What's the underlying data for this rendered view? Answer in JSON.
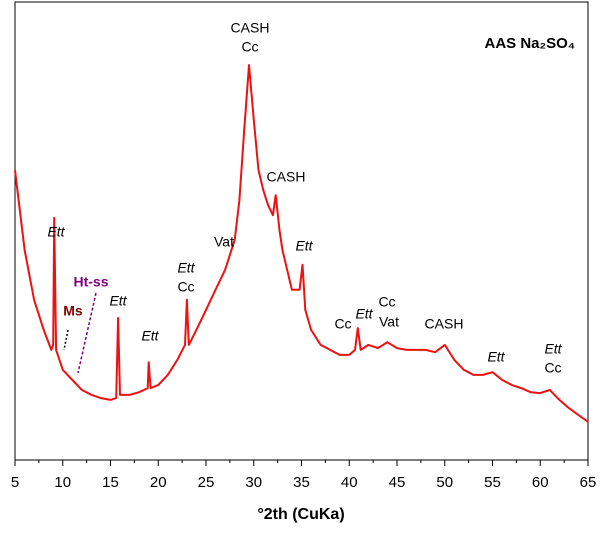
{
  "chart_data": {
    "type": "line",
    "title": "AAS Na₂SO₄",
    "x_label": "°2th (CuKa)",
    "x": [
      5,
      6,
      7,
      8,
      8.8,
      9.0,
      9.1,
      9.3,
      10,
      11,
      12,
      13,
      14,
      15,
      15.6,
      15.8,
      16.0,
      17,
      18,
      18.9,
      19.0,
      19.2,
      20,
      21,
      22,
      22.8,
      23.0,
      23.2,
      24,
      25,
      26,
      27,
      28,
      28.5,
      29,
      29.5,
      30,
      30.5,
      31,
      31.5,
      32,
      32.3,
      32.7,
      33,
      34,
      34.8,
      35.1,
      35.4,
      36,
      37,
      38,
      39,
      40,
      40.6,
      40.9,
      41.2,
      42,
      43,
      44,
      45,
      46,
      47,
      48,
      49,
      50,
      51,
      52,
      53,
      54,
      55,
      56,
      57,
      58,
      59,
      60,
      61,
      62,
      63,
      64,
      65
    ],
    "series": [
      {
        "name": "AAS Na₂SO₄",
        "color": "#ee1111",
        "values": [
          63.7,
          46.2,
          35.2,
          28.6,
          24.2,
          25.3,
          53.2,
          24.2,
          19.8,
          17.6,
          15.4,
          14.3,
          13.6,
          13.2,
          13.6,
          31.2,
          14.3,
          14.3,
          14.9,
          15.8,
          21.5,
          15.8,
          16.5,
          18.7,
          22.0,
          25.3,
          35.2,
          25.3,
          28.6,
          33.0,
          37.4,
          41.8,
          48.4,
          57.1,
          72.5,
          86.8,
          74.7,
          63.7,
          59.3,
          56.0,
          53.8,
          58.2,
          50.5,
          46.2,
          37.4,
          37.4,
          42.9,
          33.0,
          28.6,
          25.3,
          24.2,
          23.1,
          23.1,
          24.2,
          29.0,
          24.2,
          25.3,
          24.6,
          25.9,
          24.6,
          24.2,
          24.2,
          24.2,
          23.7,
          25.3,
          22.0,
          19.8,
          18.7,
          18.7,
          19.3,
          17.6,
          16.5,
          15.8,
          14.9,
          14.7,
          15.4,
          13.2,
          11.4,
          9.9,
          8.4
        ]
      }
    ],
    "xlim": [
      5,
      65
    ],
    "xticks": [
      5,
      10,
      15,
      20,
      25,
      30,
      35,
      40,
      45,
      50,
      55,
      60,
      65
    ],
    "ylim": [
      0,
      100
    ],
    "annotations": [
      "CASH",
      "Cc",
      "CASH",
      "Ett",
      "Vat",
      "Ett",
      "Ett",
      "Cc",
      "Ht-ss",
      "Ms",
      "Ett",
      "Cc",
      "Ett",
      "Vat",
      "Cc",
      "CASH",
      "Ett",
      "Ett",
      "Ett",
      "Cc"
    ]
  }
}
